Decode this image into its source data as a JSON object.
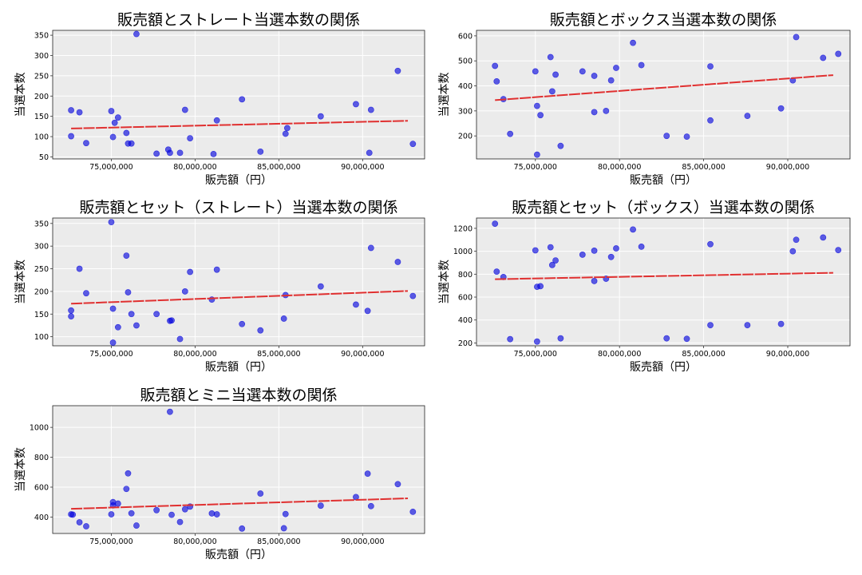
{
  "chart_data": [
    {
      "type": "scatter",
      "title": "販売額とストレート当選本数の関係",
      "xlabel": "販売額（円）",
      "ylabel": "当選本数",
      "xlim": [
        71500000,
        93700000
      ],
      "ylim": [
        45,
        362
      ],
      "yticks": [
        50,
        100,
        150,
        200,
        250,
        300,
        350
      ],
      "xticks": [
        "75,000,000",
        "80,000,000",
        "85,000,000",
        "90,000,000"
      ],
      "xtick_values": [
        75000000,
        80000000,
        85000000,
        90000000
      ],
      "grid": true,
      "point_color": "#0000dd",
      "line_color": "#e03030",
      "trend": [
        [
          72600000,
          120
        ],
        [
          92700000,
          139
        ]
      ],
      "points": [
        [
          72600000,
          165
        ],
        [
          72600000,
          101
        ],
        [
          73100000,
          160
        ],
        [
          73500000,
          84
        ],
        [
          75000000,
          163
        ],
        [
          75100000,
          99
        ],
        [
          75200000,
          134
        ],
        [
          75400000,
          147
        ],
        [
          75900000,
          109
        ],
        [
          76000000,
          83
        ],
        [
          76200000,
          83
        ],
        [
          76500000,
          353
        ],
        [
          77700000,
          58
        ],
        [
          78400000,
          68
        ],
        [
          78500000,
          60
        ],
        [
          79100000,
          60
        ],
        [
          79400000,
          166
        ],
        [
          79700000,
          96
        ],
        [
          81100000,
          57
        ],
        [
          81300000,
          140
        ],
        [
          82800000,
          192
        ],
        [
          83900000,
          63
        ],
        [
          85400000,
          107
        ],
        [
          85500000,
          121
        ],
        [
          87500000,
          150
        ],
        [
          89600000,
          180
        ],
        [
          90400000,
          60
        ],
        [
          90500000,
          166
        ],
        [
          92100000,
          262
        ],
        [
          93000000,
          82
        ]
      ]
    },
    {
      "type": "scatter",
      "title": "販売額とボックス当選本数の関係",
      "xlabel": "販売額（円）",
      "ylabel": "当選本数",
      "xlim": [
        71500000,
        93700000
      ],
      "ylim": [
        108,
        622
      ],
      "yticks": [
        200,
        300,
        400,
        500,
        600
      ],
      "xticks": [
        "75,000,000",
        "80,000,000",
        "85,000,000",
        "90,000,000"
      ],
      "xtick_values": [
        75000000,
        80000000,
        85000000,
        90000000
      ],
      "grid": true,
      "point_color": "#0000dd",
      "line_color": "#e03030",
      "trend": [
        [
          72600000,
          343
        ],
        [
          92700000,
          443
        ]
      ],
      "points": [
        [
          72600000,
          480
        ],
        [
          72700000,
          418
        ],
        [
          73100000,
          347
        ],
        [
          73500000,
          208
        ],
        [
          75000000,
          458
        ],
        [
          75100000,
          320
        ],
        [
          75100000,
          125
        ],
        [
          75300000,
          283
        ],
        [
          75900000,
          515
        ],
        [
          76000000,
          378
        ],
        [
          76200000,
          445
        ],
        [
          76500000,
          160
        ],
        [
          77800000,
          458
        ],
        [
          78500000,
          295
        ],
        [
          78500000,
          440
        ],
        [
          79200000,
          300
        ],
        [
          79500000,
          422
        ],
        [
          79800000,
          472
        ],
        [
          80800000,
          572
        ],
        [
          81300000,
          483
        ],
        [
          82800000,
          200
        ],
        [
          84000000,
          197
        ],
        [
          85400000,
          262
        ],
        [
          85400000,
          478
        ],
        [
          87600000,
          280
        ],
        [
          89600000,
          310
        ],
        [
          90300000,
          422
        ],
        [
          90500000,
          595
        ],
        [
          92100000,
          512
        ],
        [
          93000000,
          528
        ]
      ]
    },
    {
      "type": "scatter",
      "title": "販売額とセット（ストレート）当選本数の関係",
      "xlabel": "販売額（円）",
      "ylabel": "当選本数",
      "xlim": [
        71500000,
        93700000
      ],
      "ylim": [
        80,
        362
      ],
      "yticks": [
        100,
        150,
        200,
        250,
        300,
        350
      ],
      "xticks": [
        "75,000,000",
        "80,000,000",
        "85,000,000",
        "90,000,000"
      ],
      "xtick_values": [
        75000000,
        80000000,
        85000000,
        90000000
      ],
      "grid": true,
      "point_color": "#0000dd",
      "line_color": "#e03030",
      "trend": [
        [
          72600000,
          173
        ],
        [
          92700000,
          201
        ]
      ],
      "points": [
        [
          72600000,
          145
        ],
        [
          72600000,
          158
        ],
        [
          73100000,
          250
        ],
        [
          73500000,
          196
        ],
        [
          75000000,
          353
        ],
        [
          75100000,
          162
        ],
        [
          75100000,
          87
        ],
        [
          75400000,
          121
        ],
        [
          75900000,
          279
        ],
        [
          76000000,
          198
        ],
        [
          76200000,
          150
        ],
        [
          76500000,
          125
        ],
        [
          77700000,
          150
        ],
        [
          78500000,
          135
        ],
        [
          78600000,
          136
        ],
        [
          79100000,
          95
        ],
        [
          79400000,
          200
        ],
        [
          79700000,
          243
        ],
        [
          81000000,
          182
        ],
        [
          81300000,
          248
        ],
        [
          82800000,
          128
        ],
        [
          83900000,
          114
        ],
        [
          85300000,
          140
        ],
        [
          85400000,
          192
        ],
        [
          87500000,
          211
        ],
        [
          89600000,
          171
        ],
        [
          90300000,
          157
        ],
        [
          90500000,
          296
        ],
        [
          92100000,
          265
        ],
        [
          93000000,
          190
        ]
      ]
    },
    {
      "type": "scatter",
      "title": "販売額とセット（ボックス）当選本数の関係",
      "xlabel": "販売額（円）",
      "ylabel": "当選本数",
      "xlim": [
        71500000,
        93700000
      ],
      "ylim": [
        175,
        1290
      ],
      "yticks": [
        200,
        400,
        600,
        800,
        1000,
        1200
      ],
      "xticks": [
        "75,000,000",
        "80,000,000",
        "85,000,000",
        "90,000,000"
      ],
      "xtick_values": [
        75000000,
        80000000,
        85000000,
        90000000
      ],
      "grid": true,
      "point_color": "#0000dd",
      "line_color": "#e03030",
      "trend": [
        [
          72600000,
          756
        ],
        [
          92700000,
          812
        ]
      ],
      "points": [
        [
          72600000,
          1240
        ],
        [
          72700000,
          822
        ],
        [
          73100000,
          775
        ],
        [
          73500000,
          233
        ],
        [
          75000000,
          1008
        ],
        [
          75100000,
          690
        ],
        [
          75100000,
          212
        ],
        [
          75300000,
          695
        ],
        [
          75900000,
          1035
        ],
        [
          76000000,
          880
        ],
        [
          76200000,
          920
        ],
        [
          76500000,
          240
        ],
        [
          77800000,
          970
        ],
        [
          78500000,
          740
        ],
        [
          78500000,
          1005
        ],
        [
          79200000,
          760
        ],
        [
          79500000,
          950
        ],
        [
          79800000,
          1025
        ],
        [
          80800000,
          1190
        ],
        [
          81300000,
          1040
        ],
        [
          82800000,
          240
        ],
        [
          84000000,
          236
        ],
        [
          85400000,
          355
        ],
        [
          85400000,
          1062
        ],
        [
          87600000,
          355
        ],
        [
          89600000,
          366
        ],
        [
          90300000,
          1000
        ],
        [
          90500000,
          1100
        ],
        [
          92100000,
          1120
        ],
        [
          93000000,
          1010
        ]
      ]
    },
    {
      "type": "scatter",
      "title": "販売額とミニ当選本数の関係",
      "xlabel": "販売額（円）",
      "ylabel": "当選本数",
      "xlim": [
        71500000,
        93700000
      ],
      "ylim": [
        290,
        1145
      ],
      "yticks": [
        400,
        600,
        800,
        1000
      ],
      "xticks": [
        "75,000,000",
        "80,000,000",
        "85,000,000",
        "90,000,000"
      ],
      "xtick_values": [
        75000000,
        80000000,
        85000000,
        90000000
      ],
      "grid": true,
      "point_color": "#0000dd",
      "line_color": "#e03030",
      "trend": [
        [
          72600000,
          455
        ],
        [
          92700000,
          525
        ]
      ],
      "points": [
        [
          72600000,
          418
        ],
        [
          72700000,
          416
        ],
        [
          73100000,
          365
        ],
        [
          73500000,
          338
        ],
        [
          75000000,
          418
        ],
        [
          75100000,
          500
        ],
        [
          75100000,
          478
        ],
        [
          75400000,
          490
        ],
        [
          75900000,
          588
        ],
        [
          76000000,
          692
        ],
        [
          76200000,
          425
        ],
        [
          76500000,
          343
        ],
        [
          77700000,
          446
        ],
        [
          78500000,
          1104
        ],
        [
          78600000,
          415
        ],
        [
          79100000,
          367
        ],
        [
          79400000,
          452
        ],
        [
          79700000,
          470
        ],
        [
          81000000,
          424
        ],
        [
          81300000,
          418
        ],
        [
          82800000,
          323
        ],
        [
          83900000,
          557
        ],
        [
          85300000,
          325
        ],
        [
          85400000,
          420
        ],
        [
          87500000,
          476
        ],
        [
          89600000,
          534
        ],
        [
          90300000,
          690
        ],
        [
          90500000,
          473
        ],
        [
          92100000,
          620
        ],
        [
          93000000,
          435
        ]
      ]
    }
  ]
}
